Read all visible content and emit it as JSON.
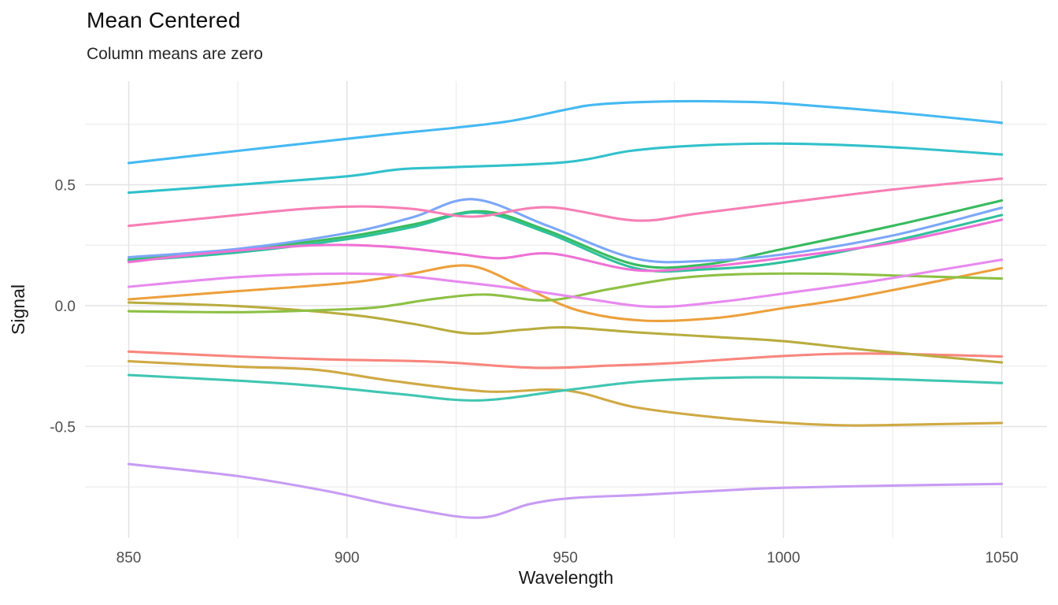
{
  "header": {
    "title": "Mean Centered",
    "subtitle": "Column means are zero"
  },
  "colors": {
    "background": "#FFFFFF",
    "grid_major": "#E3E3E3",
    "grid_minor": "#EDEDED",
    "axis_text": "#4D4D4D",
    "axis_title_text": "#1A1A1A",
    "title_text": "#0D0D0D",
    "subtitle_text": "#262626"
  },
  "chart_data": {
    "type": "line",
    "title": "Mean Centered",
    "subtitle": "Column means are zero",
    "xlabel": "Wavelength",
    "ylabel": "Signal",
    "xlim": [
      840,
      1060
    ],
    "ylim": [
      -0.963,
      0.931
    ],
    "grid": "on",
    "legend": "none",
    "x_ticks": [
      850,
      900,
      950,
      1000,
      1050
    ],
    "x_tick_labels": [
      "850",
      "900",
      "950",
      "1000",
      "1050"
    ],
    "x_minor_ticks": [
      875,
      925,
      975,
      1025
    ],
    "y_ticks": [
      0.5,
      0.0,
      -0.5
    ],
    "y_tick_labels": [
      "0.5",
      "0.0",
      "-0.5"
    ],
    "y_minor_ticks": [
      0.75,
      0.25,
      -0.25,
      -0.75
    ],
    "series": [
      {
        "name": "salmon",
        "color": "#F8867E",
        "points": [
          [
            850,
            -0.19
          ],
          [
            875,
            -0.21
          ],
          [
            895,
            -0.222
          ],
          [
            920,
            -0.232
          ],
          [
            943,
            -0.257
          ],
          [
            960,
            -0.248
          ],
          [
            975,
            -0.237
          ],
          [
            1000,
            -0.208
          ],
          [
            1020,
            -0.198
          ],
          [
            1050,
            -0.21
          ]
        ]
      },
      {
        "name": "orange",
        "color": "#ECA03C",
        "points": [
          [
            850,
            0.026
          ],
          [
            875,
            0.06
          ],
          [
            900,
            0.094
          ],
          [
            914,
            0.13
          ],
          [
            928,
            0.165
          ],
          [
            940,
            0.08
          ],
          [
            953,
            -0.02
          ],
          [
            968,
            -0.062
          ],
          [
            985,
            -0.05
          ],
          [
            1000,
            -0.01
          ],
          [
            1015,
            0.03
          ],
          [
            1035,
            0.1
          ],
          [
            1050,
            0.155
          ]
        ]
      },
      {
        "name": "mustard",
        "color": "#CFA944",
        "points": [
          [
            850,
            -0.23
          ],
          [
            875,
            -0.252
          ],
          [
            893,
            -0.265
          ],
          [
            910,
            -0.31
          ],
          [
            932,
            -0.355
          ],
          [
            950,
            -0.35
          ],
          [
            966,
            -0.42
          ],
          [
            985,
            -0.463
          ],
          [
            1000,
            -0.484
          ],
          [
            1015,
            -0.495
          ],
          [
            1035,
            -0.49
          ],
          [
            1050,
            -0.485
          ]
        ]
      },
      {
        "name": "olive",
        "color": "#B9AC3F",
        "points": [
          [
            850,
            0.013
          ],
          [
            875,
            -0.002
          ],
          [
            900,
            -0.036
          ],
          [
            915,
            -0.075
          ],
          [
            928,
            -0.115
          ],
          [
            940,
            -0.1
          ],
          [
            950,
            -0.09
          ],
          [
            966,
            -0.11
          ],
          [
            985,
            -0.13
          ],
          [
            1000,
            -0.147
          ],
          [
            1020,
            -0.185
          ],
          [
            1050,
            -0.235
          ]
        ]
      },
      {
        "name": "apple-green",
        "color": "#8DC044",
        "points": [
          [
            850,
            -0.023
          ],
          [
            875,
            -0.027
          ],
          [
            895,
            -0.018
          ],
          [
            907,
            -0.007
          ],
          [
            920,
            0.028
          ],
          [
            932,
            0.046
          ],
          [
            946,
            0.022
          ],
          [
            960,
            0.068
          ],
          [
            975,
            0.112
          ],
          [
            990,
            0.13
          ],
          [
            1010,
            0.132
          ],
          [
            1030,
            0.122
          ],
          [
            1050,
            0.112
          ]
        ]
      },
      {
        "name": "green",
        "color": "#38BB5F",
        "points": [
          [
            850,
            0.19
          ],
          [
            875,
            0.23
          ],
          [
            900,
            0.285
          ],
          [
            915,
            0.335
          ],
          [
            931,
            0.39
          ],
          [
            946,
            0.31
          ],
          [
            966,
            0.17
          ],
          [
            982,
            0.17
          ],
          [
            1000,
            0.235
          ],
          [
            1025,
            0.33
          ],
          [
            1050,
            0.435
          ]
        ]
      },
      {
        "name": "emerald",
        "color": "#2FC19D",
        "points": [
          [
            850,
            0.185
          ],
          [
            875,
            0.22
          ],
          [
            900,
            0.275
          ],
          [
            915,
            0.325
          ],
          [
            930,
            0.385
          ],
          [
            946,
            0.3
          ],
          [
            966,
            0.155
          ],
          [
            982,
            0.15
          ],
          [
            1000,
            0.18
          ],
          [
            1025,
            0.267
          ],
          [
            1050,
            0.375
          ]
        ]
      },
      {
        "name": "teal",
        "color": "#40C6B2",
        "points": [
          [
            850,
            -0.287
          ],
          [
            875,
            -0.31
          ],
          [
            893,
            -0.332
          ],
          [
            912,
            -0.365
          ],
          [
            930,
            -0.392
          ],
          [
            950,
            -0.35
          ],
          [
            968,
            -0.313
          ],
          [
            990,
            -0.297
          ],
          [
            1015,
            -0.3
          ],
          [
            1035,
            -0.31
          ],
          [
            1050,
            -0.32
          ]
        ]
      },
      {
        "name": "cyan",
        "color": "#31C1CB",
        "points": [
          [
            850,
            0.467
          ],
          [
            875,
            0.5
          ],
          [
            900,
            0.535
          ],
          [
            912,
            0.564
          ],
          [
            925,
            0.573
          ],
          [
            950,
            0.593
          ],
          [
            965,
            0.64
          ],
          [
            980,
            0.662
          ],
          [
            1000,
            0.67
          ],
          [
            1025,
            0.655
          ],
          [
            1050,
            0.625
          ]
        ]
      },
      {
        "name": "sky-blue",
        "color": "#45B9F2",
        "points": [
          [
            850,
            0.59
          ],
          [
            875,
            0.64
          ],
          [
            900,
            0.69
          ],
          [
            912,
            0.713
          ],
          [
            925,
            0.736
          ],
          [
            938,
            0.765
          ],
          [
            950,
            0.81
          ],
          [
            958,
            0.833
          ],
          [
            975,
            0.845
          ],
          [
            990,
            0.843
          ],
          [
            1000,
            0.836
          ],
          [
            1025,
            0.8
          ],
          [
            1050,
            0.756
          ]
        ]
      },
      {
        "name": "cornflower",
        "color": "#7CA7F8",
        "points": [
          [
            850,
            0.2
          ],
          [
            875,
            0.235
          ],
          [
            900,
            0.3
          ],
          [
            915,
            0.365
          ],
          [
            929,
            0.44
          ],
          [
            946,
            0.33
          ],
          [
            966,
            0.195
          ],
          [
            982,
            0.185
          ],
          [
            1000,
            0.212
          ],
          [
            1025,
            0.29
          ],
          [
            1050,
            0.405
          ]
        ]
      },
      {
        "name": "purple",
        "color": "#C79CF3",
        "points": [
          [
            850,
            -0.655
          ],
          [
            875,
            -0.705
          ],
          [
            895,
            -0.765
          ],
          [
            912,
            -0.83
          ],
          [
            930,
            -0.877
          ],
          [
            942,
            -0.82
          ],
          [
            952,
            -0.795
          ],
          [
            968,
            -0.782
          ],
          [
            985,
            -0.765
          ],
          [
            1000,
            -0.753
          ],
          [
            1025,
            -0.744
          ],
          [
            1050,
            -0.737
          ]
        ]
      },
      {
        "name": "orchid",
        "color": "#E78AEF",
        "points": [
          [
            850,
            0.078
          ],
          [
            875,
            0.118
          ],
          [
            895,
            0.132
          ],
          [
            910,
            0.128
          ],
          [
            925,
            0.1
          ],
          [
            940,
            0.068
          ],
          [
            955,
            0.028
          ],
          [
            970,
            -0.005
          ],
          [
            985,
            0.015
          ],
          [
            1000,
            0.05
          ],
          [
            1020,
            0.1
          ],
          [
            1035,
            0.145
          ],
          [
            1050,
            0.19
          ]
        ]
      },
      {
        "name": "magenta",
        "color": "#EE71D5",
        "points": [
          [
            850,
            0.18
          ],
          [
            870,
            0.22
          ],
          [
            893,
            0.25
          ],
          [
            910,
            0.243
          ],
          [
            925,
            0.215
          ],
          [
            935,
            0.196
          ],
          [
            947,
            0.215
          ],
          [
            966,
            0.147
          ],
          [
            982,
            0.16
          ],
          [
            1000,
            0.198
          ],
          [
            1025,
            0.26
          ],
          [
            1050,
            0.355
          ]
        ]
      },
      {
        "name": "pink",
        "color": "#F67FB5",
        "points": [
          [
            850,
            0.33
          ],
          [
            875,
            0.375
          ],
          [
            890,
            0.4
          ],
          [
            903,
            0.41
          ],
          [
            915,
            0.4
          ],
          [
            929,
            0.368
          ],
          [
            946,
            0.407
          ],
          [
            966,
            0.352
          ],
          [
            980,
            0.38
          ],
          [
            1000,
            0.425
          ],
          [
            1025,
            0.48
          ],
          [
            1050,
            0.525
          ]
        ]
      }
    ]
  }
}
